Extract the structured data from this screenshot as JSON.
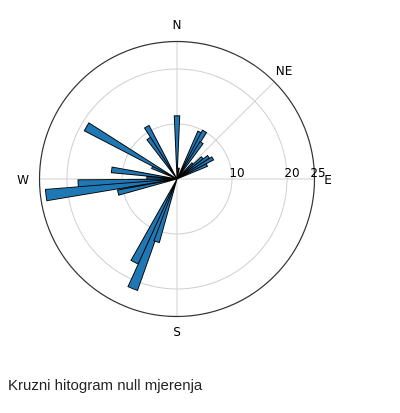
{
  "caption": "Kruzni hitogram null mjerenja",
  "chart_data": {
    "type": "polar-histogram",
    "direction_labels": {
      "north": "N",
      "northeast": "NE",
      "west": "W",
      "east": "E",
      "south": "S"
    },
    "radial_ticks": [
      10,
      20,
      25
    ],
    "rlim": [
      0,
      25
    ],
    "grid": true,
    "bar_color": "#1f77b4",
    "bar_edge_color": "#000000",
    "bar_width_deg": 5,
    "bins": [
      {
        "angle_deg": 0,
        "value": 11.5
      },
      {
        "angle_deg": 26,
        "value": 9.5
      },
      {
        "angle_deg": 30,
        "value": 10
      },
      {
        "angle_deg": 34,
        "value": 8
      },
      {
        "angle_deg": 45,
        "value": 4
      },
      {
        "angle_deg": 50,
        "value": 6
      },
      {
        "angle_deg": 55,
        "value": 7
      },
      {
        "angle_deg": 60,
        "value": 7.5
      },
      {
        "angle_deg": 65,
        "value": 6
      },
      {
        "angle_deg": 10,
        "value": 2
      },
      {
        "angle_deg": 330,
        "value": 11
      },
      {
        "angle_deg": 325,
        "value": 9
      },
      {
        "angle_deg": 300,
        "value": 19
      },
      {
        "angle_deg": 295,
        "value": 5
      },
      {
        "angle_deg": 278,
        "value": 12
      },
      {
        "angle_deg": 272,
        "value": 5.5
      },
      {
        "angle_deg": 267,
        "value": 18
      },
      {
        "angle_deg": 263,
        "value": 24
      },
      {
        "angle_deg": 257,
        "value": 11
      },
      {
        "angle_deg": 207,
        "value": 17
      },
      {
        "angle_deg": 202,
        "value": 21.5
      },
      {
        "angle_deg": 198,
        "value": 12
      }
    ]
  }
}
